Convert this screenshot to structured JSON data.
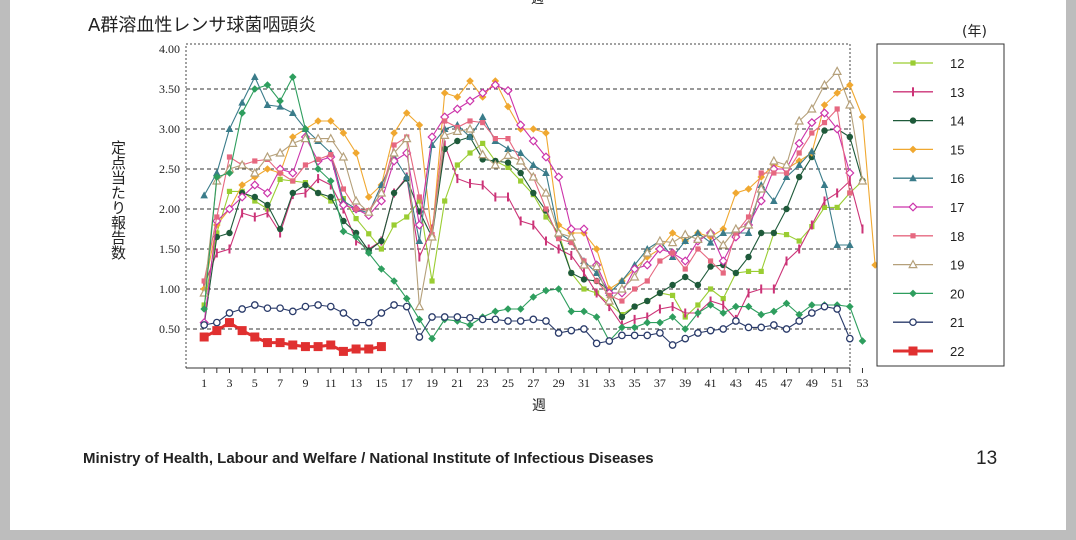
{
  "top_cut_label": "週",
  "footer": {
    "source": "Ministry of Health, Labour and Welfare / National Institute of Infectious Diseases",
    "page_number": "13"
  },
  "chart_data": {
    "type": "line",
    "title": "A群溶血性レンサ球菌咽頭炎",
    "xlabel": "週",
    "ylabel": "定点当たり報告数",
    "legend_title": "(年)",
    "legend_position": "right",
    "ylim": [
      0,
      4.0
    ],
    "yticks": [
      "4.00",
      "3.50",
      "3.00",
      "2.50",
      "2.00",
      "1.50",
      "1.00",
      "0.50"
    ],
    "xticks": [
      "1",
      "3",
      "5",
      "7",
      "9",
      "11",
      "13",
      "15",
      "17",
      "19",
      "21",
      "23",
      "25",
      "27",
      "29",
      "31",
      "33",
      "35",
      "37",
      "39",
      "41",
      "43",
      "45",
      "47",
      "49",
      "51",
      "53"
    ],
    "x_range": [
      1,
      53
    ],
    "series": [
      {
        "name": "12",
        "color": "#9acd32",
        "marker": "square",
        "values": [
          0.8,
          1.7,
          2.22,
          2.22,
          2.1,
          2.0,
          2.37,
          2.35,
          2.33,
          2.2,
          2.1,
          2.13,
          1.88,
          1.69,
          1.5,
          1.8,
          1.9,
          2.1,
          1.1,
          2.1,
          2.55,
          2.7,
          2.82,
          2.6,
          2.52,
          2.35,
          2.18,
          1.9,
          1.7,
          1.2,
          1.0,
          0.95,
          0.82,
          0.68,
          0.78,
          0.85,
          0.95,
          0.92,
          0.65,
          0.8,
          1.0,
          0.88,
          1.2,
          1.22,
          1.22,
          1.7,
          1.68,
          1.6,
          1.78,
          2.02,
          2.02,
          2.2,
          2.35
        ]
      },
      {
        "name": "13",
        "color": "#cc3377",
        "marker": "tick",
        "values": [
          1.05,
          1.45,
          1.5,
          1.95,
          1.9,
          1.95,
          1.7,
          2.18,
          2.2,
          2.38,
          2.3,
          2.0,
          1.6,
          1.5,
          1.6,
          2.2,
          2.4,
          1.4,
          1.75,
          2.8,
          2.38,
          2.32,
          2.3,
          2.15,
          2.15,
          1.85,
          1.8,
          1.6,
          1.5,
          1.42,
          1.2,
          0.95,
          0.78,
          0.55,
          0.62,
          0.65,
          0.75,
          0.78,
          0.7,
          0.7,
          0.85,
          0.8,
          0.62,
          0.95,
          1.0,
          1.0,
          1.35,
          1.5,
          1.8,
          2.1,
          2.2,
          2.35,
          1.75
        ]
      },
      {
        "name": "14",
        "color": "#1e5a3a",
        "marker": "circle",
        "values": [
          0.55,
          1.65,
          1.7,
          2.2,
          2.15,
          2.05,
          1.75,
          2.2,
          2.3,
          2.2,
          2.15,
          1.85,
          1.7,
          1.48,
          1.6,
          2.2,
          2.38,
          1.97,
          1.65,
          2.75,
          2.85,
          2.9,
          2.62,
          2.6,
          2.58,
          2.45,
          2.2,
          1.98,
          1.65,
          1.2,
          1.12,
          1.1,
          0.98,
          0.65,
          0.78,
          0.85,
          0.95,
          1.05,
          1.15,
          1.05,
          1.28,
          1.3,
          1.2,
          1.4,
          1.7,
          1.7,
          2.0,
          2.4,
          2.65,
          2.98,
          3.0,
          2.9,
          2.35
        ]
      },
      {
        "name": "15",
        "color": "#f0a830",
        "marker": "diamond",
        "values": [
          1.0,
          1.8,
          2.0,
          2.3,
          2.4,
          2.5,
          2.45,
          2.9,
          3.0,
          3.1,
          3.1,
          2.95,
          2.7,
          2.15,
          2.3,
          2.95,
          3.2,
          3.05,
          1.65,
          3.45,
          3.4,
          3.6,
          3.4,
          3.6,
          3.28,
          3.0,
          3.0,
          2.95,
          1.8,
          1.7,
          1.7,
          1.5,
          1.0,
          1.1,
          1.25,
          1.4,
          1.5,
          1.7,
          1.6,
          1.7,
          1.65,
          1.75,
          2.2,
          2.25,
          2.4,
          2.55,
          2.5,
          2.6,
          2.7,
          3.3,
          3.45,
          3.55,
          3.15,
          1.3
        ]
      },
      {
        "name": "16",
        "color": "#3a7c8a",
        "marker": "triangle",
        "values": [
          2.17,
          2.45,
          3.0,
          3.33,
          3.65,
          3.3,
          3.28,
          3.2,
          3.0,
          2.85,
          2.7,
          2.1,
          2.0,
          1.95,
          2.3,
          2.65,
          2.4,
          1.6,
          2.8,
          3.0,
          3.05,
          2.9,
          3.15,
          2.85,
          2.75,
          2.7,
          2.55,
          2.45,
          1.7,
          1.6,
          1.35,
          1.2,
          0.95,
          1.1,
          1.3,
          1.5,
          1.6,
          1.4,
          1.6,
          1.7,
          1.58,
          1.7,
          1.7,
          1.7,
          2.3,
          2.1,
          2.4,
          2.55,
          2.72,
          2.3,
          1.55,
          1.55
        ]
      },
      {
        "name": "17",
        "color": "#cc33aa",
        "marker": "diamond-open",
        "values": [
          0.58,
          1.85,
          2.0,
          2.15,
          2.3,
          2.2,
          2.5,
          2.45,
          2.9,
          2.6,
          2.65,
          2.05,
          2.0,
          1.92,
          2.1,
          2.6,
          2.7,
          1.8,
          2.9,
          3.15,
          3.25,
          3.35,
          3.45,
          3.55,
          3.48,
          3.05,
          2.85,
          2.65,
          2.4,
          1.75,
          1.75,
          1.3,
          0.95,
          0.95,
          1.25,
          1.3,
          1.5,
          1.45,
          1.35,
          1.6,
          1.7,
          1.35,
          1.65,
          1.8,
          2.1,
          2.5,
          2.5,
          2.82,
          3.08,
          3.2,
          3.0,
          2.45
        ]
      },
      {
        "name": "18",
        "color": "#e66880",
        "marker": "square",
        "values": [
          1.1,
          1.9,
          2.65,
          2.55,
          2.6,
          2.62,
          2.45,
          2.35,
          2.55,
          2.62,
          2.68,
          2.25,
          2.0,
          1.98,
          2.2,
          2.8,
          2.9,
          2.15,
          1.68,
          3.1,
          3.02,
          3.1,
          3.08,
          2.88,
          2.88,
          2.6,
          2.4,
          2.0,
          1.63,
          1.58,
          1.35,
          1.1,
          0.92,
          0.85,
          1.0,
          1.1,
          1.35,
          1.45,
          1.25,
          1.5,
          1.35,
          1.2,
          1.7,
          1.9,
          2.45,
          2.45,
          2.45,
          2.7,
          2.95,
          3.08,
          3.25,
          2.2
        ]
      },
      {
        "name": "19",
        "color": "#b5a07a",
        "marker": "triangle-open",
        "values": [
          0.95,
          2.35,
          2.5,
          2.55,
          2.45,
          2.65,
          2.7,
          2.82,
          2.88,
          2.88,
          2.88,
          2.65,
          2.1,
          1.96,
          2.2,
          2.7,
          2.88,
          0.78,
          1.65,
          2.92,
          2.97,
          3.0,
          2.68,
          2.55,
          2.67,
          2.6,
          2.4,
          2.2,
          1.7,
          1.65,
          1.3,
          1.28,
          0.85,
          1.0,
          1.15,
          1.45,
          1.6,
          1.58,
          1.68,
          1.62,
          1.7,
          1.55,
          1.75,
          1.8,
          2.25,
          2.6,
          2.55,
          3.1,
          3.25,
          3.55,
          3.72,
          3.3,
          2.35
        ]
      },
      {
        "name": "20",
        "color": "#2e9e5e",
        "marker": "diamond",
        "values": [
          0.75,
          2.4,
          2.45,
          3.2,
          3.5,
          3.55,
          3.35,
          3.65,
          3.0,
          2.5,
          2.35,
          1.72,
          1.65,
          1.45,
          1.25,
          1.1,
          0.88,
          0.62,
          0.38,
          0.62,
          0.6,
          0.55,
          0.65,
          0.72,
          0.75,
          0.75,
          0.9,
          0.98,
          1.0,
          0.72,
          0.72,
          0.65,
          0.35,
          0.52,
          0.52,
          0.58,
          0.58,
          0.65,
          0.5,
          0.7,
          0.8,
          0.7,
          0.78,
          0.78,
          0.68,
          0.72,
          0.82,
          0.68,
          0.8,
          0.8,
          0.8,
          0.78,
          0.35
        ]
      },
      {
        "name": "21",
        "color": "#2b3c6b",
        "marker": "circle-open",
        "values": [
          0.55,
          0.58,
          0.7,
          0.75,
          0.8,
          0.76,
          0.76,
          0.72,
          0.78,
          0.8,
          0.78,
          0.7,
          0.58,
          0.58,
          0.7,
          0.8,
          0.78,
          0.4,
          0.65,
          0.65,
          0.65,
          0.64,
          0.62,
          0.62,
          0.6,
          0.6,
          0.62,
          0.6,
          0.45,
          0.48,
          0.5,
          0.32,
          0.35,
          0.42,
          0.42,
          0.42,
          0.45,
          0.3,
          0.38,
          0.45,
          0.48,
          0.5,
          0.6,
          0.52,
          0.52,
          0.55,
          0.5,
          0.6,
          0.7,
          0.78,
          0.75,
          0.38
        ]
      },
      {
        "name": "22",
        "color": "#e03030",
        "marker": "square-bold",
        "values": [
          0.4,
          0.48,
          0.58,
          0.48,
          0.4,
          0.33,
          0.33,
          0.3,
          0.28,
          0.28,
          0.3,
          0.22,
          0.25,
          0.25,
          0.28
        ]
      }
    ]
  }
}
